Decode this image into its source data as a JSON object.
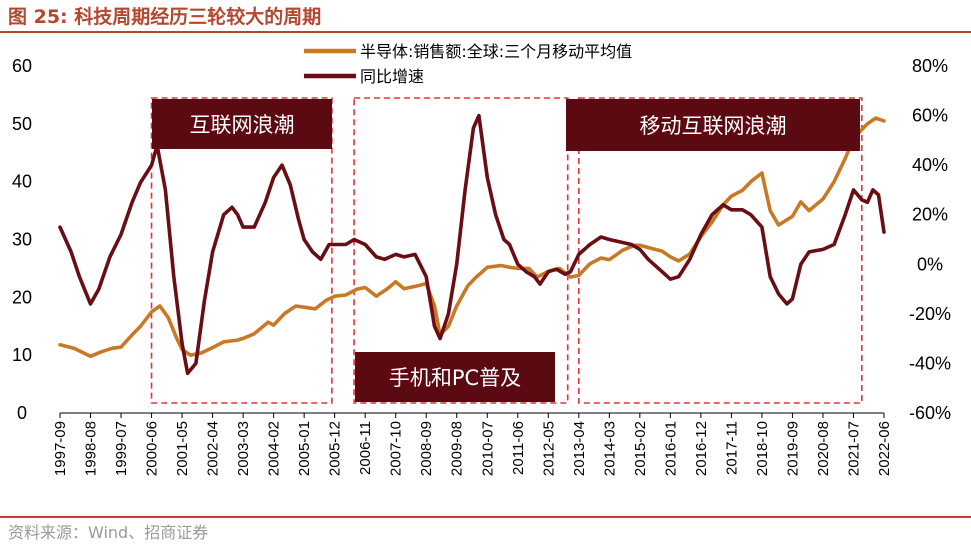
{
  "header": {
    "title": "图 25:  科技周期经历三轮较大的周期"
  },
  "footer": {
    "source": "资料来源：Wind、招商证券"
  },
  "colors": {
    "title": "#b5472f",
    "semiconductor": "#c97924",
    "yoy": "#6b0d14",
    "annotation_bg": "#5c0a12",
    "dashed_box": "#e8303a"
  },
  "chart_data": {
    "type": "line",
    "title": "",
    "legend_position": "top-center",
    "grid": false,
    "x_tick_labels": [
      "1997-09",
      "1998-08",
      "1999-07",
      "2000-06",
      "2001-05",
      "2002-04",
      "2003-03",
      "2004-02",
      "2005-01",
      "2005-12",
      "2006-11",
      "2007-10",
      "2008-09",
      "2009-08",
      "2010-07",
      "2011-06",
      "2012-05",
      "2013-04",
      "2014-03",
      "2015-02",
      "2016-01",
      "2016-12",
      "2017-11",
      "2018-10",
      "2019-09",
      "2020-08",
      "2021-07",
      "2022-06"
    ],
    "left_axis": {
      "min": 0,
      "max": 60,
      "ticks": [
        0,
        10,
        20,
        30,
        40,
        50,
        60
      ]
    },
    "right_axis": {
      "min": -60,
      "max": 80,
      "ticks": [
        "-60%",
        "-40%",
        "-20%",
        "0%",
        "20%",
        "40%",
        "60%",
        "80%"
      ]
    },
    "series": [
      {
        "name": "半导体:销售额:全球:三个月移动平均值",
        "axis": "left",
        "points": [
          [
            "1997-09",
            11.8
          ],
          [
            "1998-02",
            11.2
          ],
          [
            "1998-08",
            9.8
          ],
          [
            "1998-12",
            10.6
          ],
          [
            "1999-04",
            11.2
          ],
          [
            "1999-07",
            11.4
          ],
          [
            "1999-11",
            13.5
          ],
          [
            "2000-02",
            15.0
          ],
          [
            "2000-06",
            17.5
          ],
          [
            "2000-09",
            18.5
          ],
          [
            "2000-12",
            16.5
          ],
          [
            "2001-03",
            13.0
          ],
          [
            "2001-05",
            11.0
          ],
          [
            "2001-08",
            10.0
          ],
          [
            "2001-12",
            10.4
          ],
          [
            "2002-04",
            11.3
          ],
          [
            "2002-08",
            12.3
          ],
          [
            "2003-01",
            12.6
          ],
          [
            "2003-03",
            12.9
          ],
          [
            "2003-07",
            13.7
          ],
          [
            "2003-12",
            15.7
          ],
          [
            "2004-02",
            15.2
          ],
          [
            "2004-06",
            17.2
          ],
          [
            "2004-10",
            18.5
          ],
          [
            "2005-01",
            18.3
          ],
          [
            "2005-05",
            18.0
          ],
          [
            "2005-09",
            19.5
          ],
          [
            "2005-12",
            20.2
          ],
          [
            "2006-04",
            20.4
          ],
          [
            "2006-08",
            21.4
          ],
          [
            "2006-11",
            21.7
          ],
          [
            "2007-03",
            20.2
          ],
          [
            "2007-07",
            21.5
          ],
          [
            "2007-10",
            22.7
          ],
          [
            "2008-01",
            21.5
          ],
          [
            "2008-06",
            22.0
          ],
          [
            "2008-09",
            22.4
          ],
          [
            "2008-12",
            18.5
          ],
          [
            "2009-02",
            13.5
          ],
          [
            "2009-05",
            15.0
          ],
          [
            "2009-08",
            18.5
          ],
          [
            "2009-12",
            22.0
          ],
          [
            "2010-03",
            23.5
          ],
          [
            "2010-07",
            25.2
          ],
          [
            "2010-12",
            25.5
          ],
          [
            "2011-03",
            25.2
          ],
          [
            "2011-06",
            25.0
          ],
          [
            "2011-10",
            25.0
          ],
          [
            "2012-01",
            23.5
          ],
          [
            "2012-05",
            24.5
          ],
          [
            "2012-09",
            25.0
          ],
          [
            "2013-01",
            23.5
          ],
          [
            "2013-04",
            23.8
          ],
          [
            "2013-08",
            25.8
          ],
          [
            "2013-12",
            26.8
          ],
          [
            "2014-03",
            26.5
          ],
          [
            "2014-08",
            28.2
          ],
          [
            "2014-12",
            29.0
          ],
          [
            "2015-02",
            29.0
          ],
          [
            "2015-06",
            28.5
          ],
          [
            "2015-10",
            28.0
          ],
          [
            "2016-01",
            27.0
          ],
          [
            "2016-04",
            26.3
          ],
          [
            "2016-08",
            27.5
          ],
          [
            "2016-12",
            30.5
          ],
          [
            "2017-04",
            33.0
          ],
          [
            "2017-08",
            36.0
          ],
          [
            "2017-11",
            37.5
          ],
          [
            "2018-03",
            38.5
          ],
          [
            "2018-06",
            40.0
          ],
          [
            "2018-10",
            41.5
          ],
          [
            "2019-01",
            35.0
          ],
          [
            "2019-04",
            32.5
          ],
          [
            "2019-09",
            34.0
          ],
          [
            "2019-12",
            36.5
          ],
          [
            "2020-03",
            35.0
          ],
          [
            "2020-08",
            37.0
          ],
          [
            "2020-12",
            40.0
          ],
          [
            "2021-04",
            44.0
          ],
          [
            "2021-07",
            47.5
          ],
          [
            "2021-12",
            50.0
          ],
          [
            "2022-03",
            51.0
          ],
          [
            "2022-06",
            50.5
          ]
        ]
      },
      {
        "name": "同比增速",
        "axis": "right",
        "points": [
          [
            "1997-09",
            15
          ],
          [
            "1998-01",
            5
          ],
          [
            "1998-04",
            -5
          ],
          [
            "1998-08",
            -16
          ],
          [
            "1998-11",
            -10
          ],
          [
            "1999-03",
            3
          ],
          [
            "1999-07",
            12
          ],
          [
            "1999-11",
            25
          ],
          [
            "2000-02",
            33
          ],
          [
            "2000-06",
            40
          ],
          [
            "2000-08",
            48
          ],
          [
            "2000-11",
            30
          ],
          [
            "2001-02",
            -5
          ],
          [
            "2001-05",
            -32
          ],
          [
            "2001-07",
            -44
          ],
          [
            "2001-10",
            -40
          ],
          [
            "2002-01",
            -15
          ],
          [
            "2002-04",
            5
          ],
          [
            "2002-08",
            20
          ],
          [
            "2002-11",
            23
          ],
          [
            "2003-01",
            20
          ],
          [
            "2003-03",
            15
          ],
          [
            "2003-07",
            15
          ],
          [
            "2003-11",
            25
          ],
          [
            "2004-02",
            35
          ],
          [
            "2004-05",
            40
          ],
          [
            "2004-08",
            32
          ],
          [
            "2004-11",
            18
          ],
          [
            "2005-01",
            10
          ],
          [
            "2005-04",
            5
          ],
          [
            "2005-07",
            2
          ],
          [
            "2005-10",
            8
          ],
          [
            "2005-12",
            8
          ],
          [
            "2006-04",
            8
          ],
          [
            "2006-07",
            10
          ],
          [
            "2006-11",
            8
          ],
          [
            "2007-03",
            3
          ],
          [
            "2007-06",
            2
          ],
          [
            "2007-10",
            4
          ],
          [
            "2008-01",
            3
          ],
          [
            "2008-05",
            4
          ],
          [
            "2008-09",
            -5
          ],
          [
            "2008-12",
            -25
          ],
          [
            "2009-02",
            -30
          ],
          [
            "2009-05",
            -20
          ],
          [
            "2009-08",
            0
          ],
          [
            "2009-11",
            30
          ],
          [
            "2010-02",
            55
          ],
          [
            "2010-04",
            60
          ],
          [
            "2010-07",
            35
          ],
          [
            "2010-10",
            20
          ],
          [
            "2011-01",
            10
          ],
          [
            "2011-03",
            8
          ],
          [
            "2011-06",
            0
          ],
          [
            "2011-09",
            -3
          ],
          [
            "2011-12",
            -5
          ],
          [
            "2012-02",
            -8
          ],
          [
            "2012-05",
            -3
          ],
          [
            "2012-08",
            -2
          ],
          [
            "2012-11",
            -4
          ],
          [
            "2013-01",
            -3
          ],
          [
            "2013-04",
            4
          ],
          [
            "2013-08",
            8
          ],
          [
            "2013-12",
            11
          ],
          [
            "2014-03",
            10
          ],
          [
            "2014-07",
            9
          ],
          [
            "2014-11",
            8
          ],
          [
            "2015-02",
            6
          ],
          [
            "2015-05",
            2
          ],
          [
            "2015-09",
            -2
          ],
          [
            "2016-01",
            -6
          ],
          [
            "2016-04",
            -5
          ],
          [
            "2016-08",
            2
          ],
          [
            "2016-12",
            12
          ],
          [
            "2017-04",
            20
          ],
          [
            "2017-08",
            24
          ],
          [
            "2017-11",
            22
          ],
          [
            "2018-03",
            22
          ],
          [
            "2018-06",
            20
          ],
          [
            "2018-10",
            15
          ],
          [
            "2019-01",
            -5
          ],
          [
            "2019-04",
            -12
          ],
          [
            "2019-07",
            -16
          ],
          [
            "2019-09",
            -14
          ],
          [
            "2019-12",
            0
          ],
          [
            "2020-03",
            5
          ],
          [
            "2020-08",
            6
          ],
          [
            "2020-12",
            8
          ],
          [
            "2021-04",
            20
          ],
          [
            "2021-07",
            30
          ],
          [
            "2021-10",
            26
          ],
          [
            "2021-12",
            25
          ],
          [
            "2022-02",
            30
          ],
          [
            "2022-04",
            28
          ],
          [
            "2022-06",
            13
          ]
        ]
      }
    ],
    "annotations": [
      {
        "text": "互联网浪潮",
        "box": [
          "2000-06",
          "2005-11"
        ]
      },
      {
        "text": "手机和PC普及",
        "box": [
          "2006-07",
          "2012-12"
        ]
      },
      {
        "text": "移动互联网浪潮",
        "box": [
          "2013-04",
          "2021-10"
        ]
      }
    ]
  }
}
